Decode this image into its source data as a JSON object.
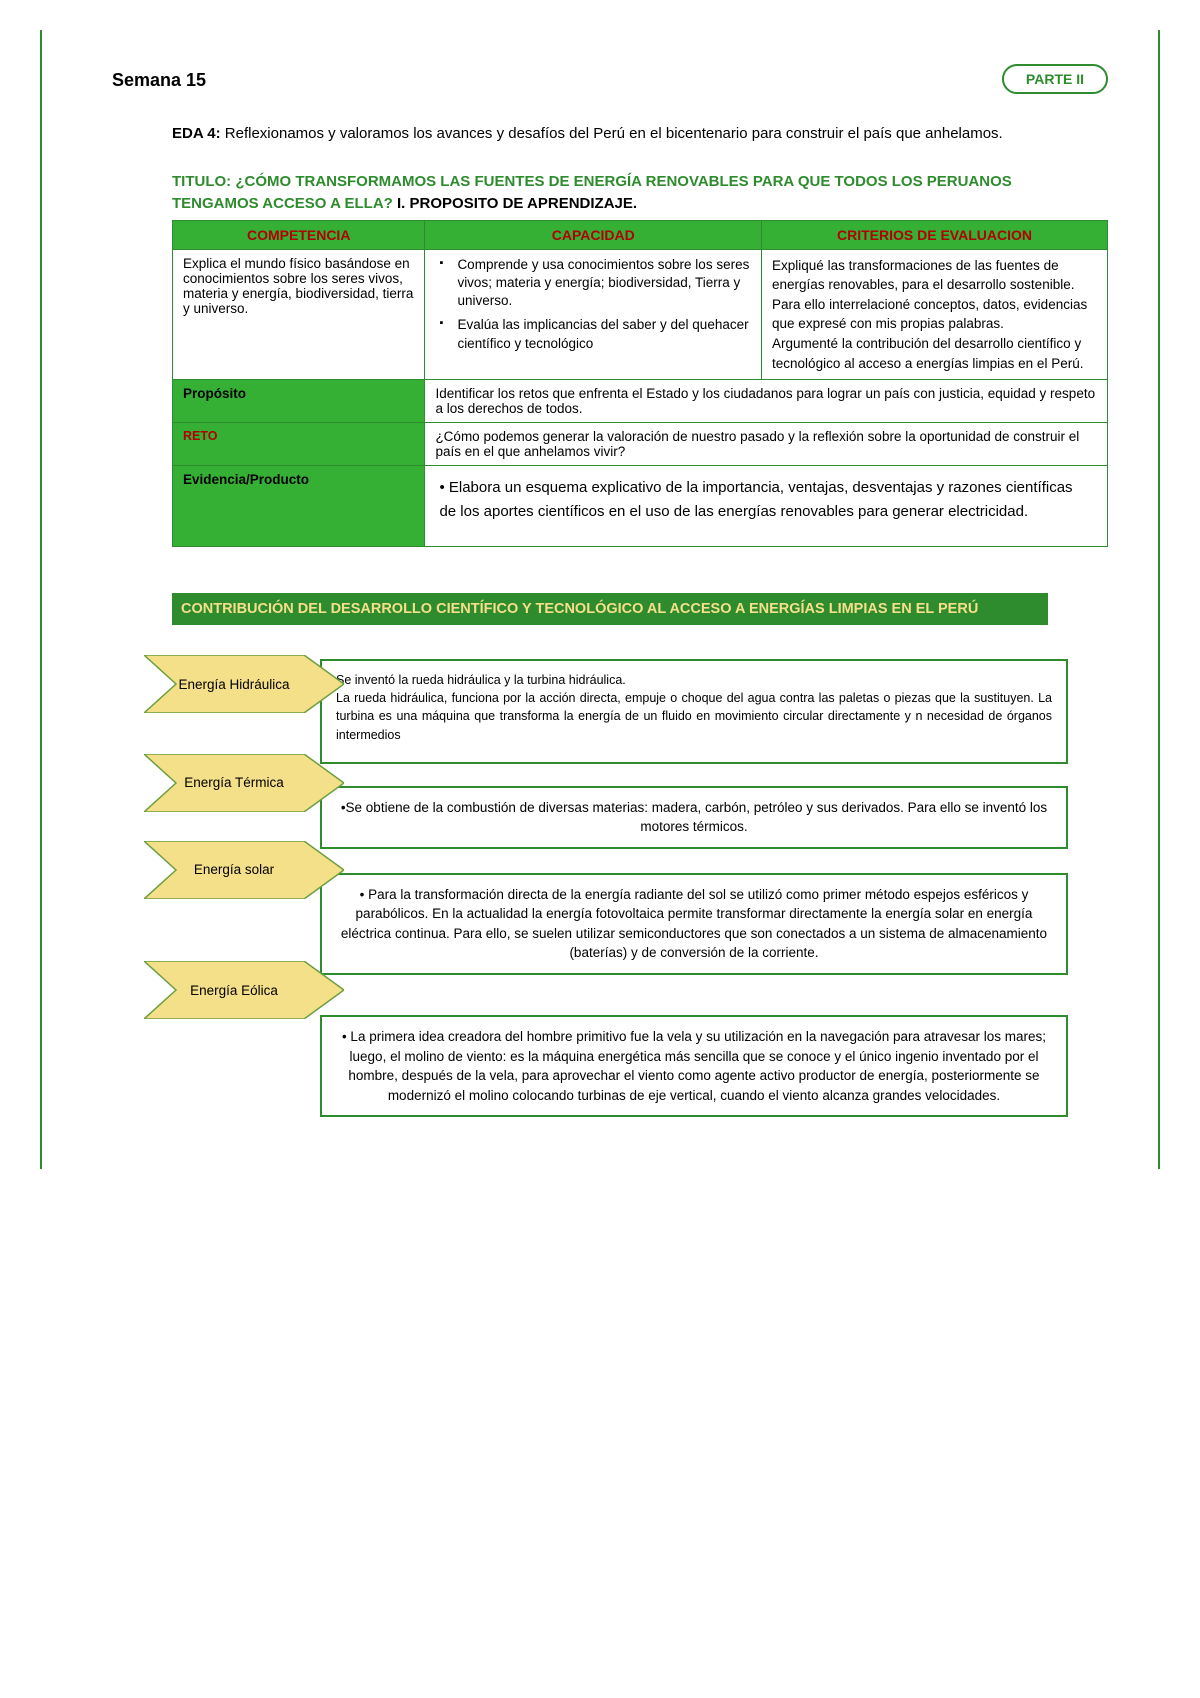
{
  "colors": {
    "green_primary": "#2e8b2e",
    "green_bright": "#35b035",
    "header_text": "#b30000",
    "arrow_fill": "#f5e08a",
    "banner_text": "#f5e08a",
    "page_bg": "#ffffff",
    "text": "#000000"
  },
  "header": {
    "week": "Semana 15",
    "badge": "PARTE II"
  },
  "eda": {
    "prefix": "EDA 4:",
    "text": " Reflexionamos y valoramos los avances y desafíos del Perú en el bicentenario para construir el país que anhelamos."
  },
  "titulo": {
    "label": "TITULO: ",
    "question": "¿CÓMO TRANSFORMAMOS LAS FUENTES DE ENERGÍA RENOVABLES PARA QUE TODOS LOS PERUANOS TENGAMOS ACCESO A ELLA?",
    "suffix": " I. PROPOSITO DE APRENDIZAJE."
  },
  "table": {
    "headers": {
      "competencia": "COMPETENCIA",
      "capacidad": "CAPACIDAD",
      "criterios": "CRITERIOS DE EVALUACION"
    },
    "row1": {
      "competencia": "Explica el mundo físico basándose en conocimientos sobre los seres vivos, materia y energía, biodiversidad, tierra y universo.",
      "capacidad_1": "Comprende y usa conocimientos sobre los seres vivos; materia y energía; biodiversidad, Tierra y universo.",
      "capacidad_2": "Evalúa las implicancias del saber y del quehacer científico y tecnológico",
      "criterios": "Expliqué las transformaciones de las fuentes de energías renovables, para el desarrollo sostenible. Para ello interrelacioné conceptos, datos, evidencias que expresé con mis propias palabras.\nArgumenté la contribución del desarrollo científico y tecnológico al acceso a energías limpias en el Perú."
    },
    "rows": {
      "proposito_label": "Propósito",
      "proposito_text": "Identificar los retos que enfrenta el Estado y los ciudadanos para lograr un país con justicia, equidad y respeto a los derechos de todos.",
      "reto_label": "RETO",
      "reto_text": "¿Cómo podemos generar la valoración de nuestro pasado y la reflexión sobre la oportunidad de construir el país en el que anhelamos vivir?",
      "evidencia_label": "Evidencia/Producto",
      "evidencia_text": "• Elabora un esquema explicativo de la importancia, ventajas, desventajas y razones científicas de los aportes científicos en el uso de las energías renovables para generar electricidad."
    }
  },
  "banner": "CONTRIBUCIÓN DEL  DESARROLLO CIENTÍFICO Y TECNOLÓGICO AL ACCESO A ENERGÍAS LIMPIAS EN EL PERÚ",
  "energies": {
    "hidraulica": {
      "label": "Energía Hidráulica",
      "desc": "Se inventó la rueda hidráulica y la turbina hidráulica.\nLa rueda hidráulica, funciona por la acción directa, empuje o choque del agua contra las paletas o piezas que la sustituyen. La turbina es una máquina que transforma la energía de un fluido en movimiento circular directamente y n necesidad de órganos intermedios"
    },
    "termica": {
      "label": "Energía Térmica",
      "desc": "•Se obtiene de la combustión de diversas materias: madera, carbón, petróleo y sus derivados. Para ello se inventó los motores térmicos."
    },
    "solar": {
      "label": "Energía solar",
      "desc": "• Para la transformación directa de la energía radiante del sol se utilizó como primer método espejos esféricos y parabólicos. En la actualidad la energía fotovoltaica permite transformar directamente la energía solar en energía eléctrica continua. Para ello, se suelen utilizar semiconductores que son conectados a un sistema de almacenamiento (baterías) y de conversión de la corriente."
    },
    "eolica": {
      "label": "Energía Eólica",
      "desc": "• La primera idea creadora del hombre primitivo fue la vela y su utilización en la navegación para atravesar los mares; luego, el molino de viento: es la máquina energética más sencilla que se conoce y el único ingenio inventado por el hombre, después de la vela, para aprovechar el viento como agente activo productor de energía, posteriormente se modernizó el molino colocando turbinas de eje vertical, cuando el viento alcanza grandes velocidades."
    }
  }
}
